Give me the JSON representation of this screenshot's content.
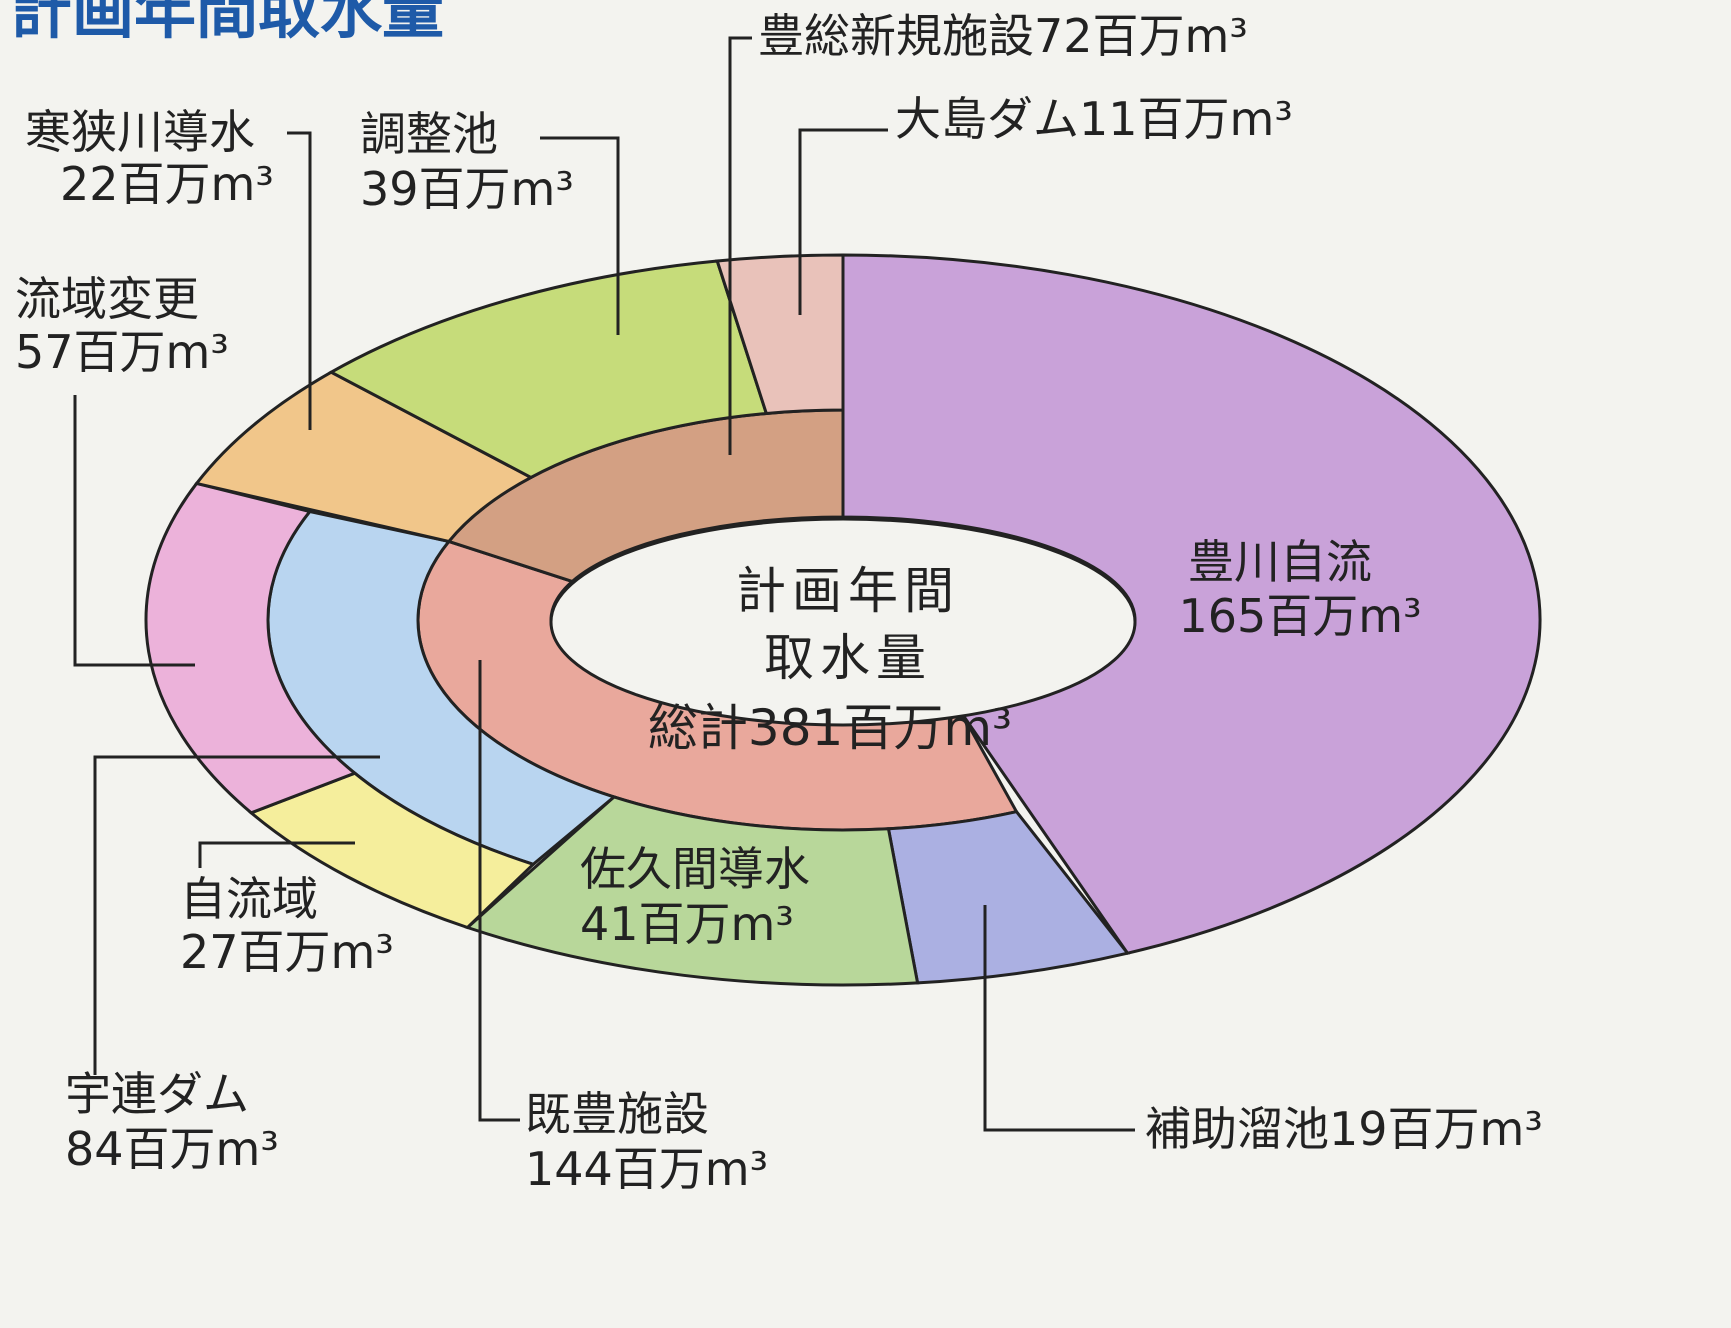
{
  "chart_data": {
    "type": "sunburst",
    "title": "計画年間取水量",
    "center_lines": [
      "計画年間",
      "取水量"
    ],
    "total": 381,
    "total_label": "総計381百万m³",
    "nodes": [
      {
        "name": "豊川自流",
        "value": 165,
        "value_label": "165百万m³",
        "color": "#c9a2d9"
      },
      {
        "name": "既豊施設",
        "value": 144,
        "value_label": "144百万m³",
        "color": "#e9a89c",
        "children": [
          {
            "name": "補助溜池",
            "value": 19,
            "value_label": "19百万m³",
            "color": "#abb0e2"
          },
          {
            "name": "佐久間導水",
            "value": 41,
            "value_label": "41百万m³",
            "color": "#b8d79a"
          },
          {
            "name": "宇連ダム",
            "value": 84,
            "value_label": "84百万m³",
            "color": "#b9d5f0",
            "children": [
              {
                "name": "自流域",
                "value": 27,
                "value_label": "27百万m³",
                "color": "#f5ee9c"
              },
              {
                "name": "流域変更",
                "value": 57,
                "value_label": "57百万m³",
                "color": "#ecb2da"
              }
            ]
          }
        ]
      },
      {
        "name": "豊総新規施設",
        "value": 72,
        "value_label": "72百万m³",
        "color": "#d3a083",
        "children": [
          {
            "name": "寒狭川導水",
            "value": 22,
            "value_label": "22百万m³",
            "color": "#f1c68a"
          },
          {
            "name": "調整池",
            "value": 39,
            "value_label": "39百万m³",
            "color": "#c6dc7a"
          },
          {
            "name": "大島ダム",
            "value": 11,
            "value_label": "11百万m³",
            "color": "#e9c2ba"
          }
        ]
      }
    ]
  }
}
